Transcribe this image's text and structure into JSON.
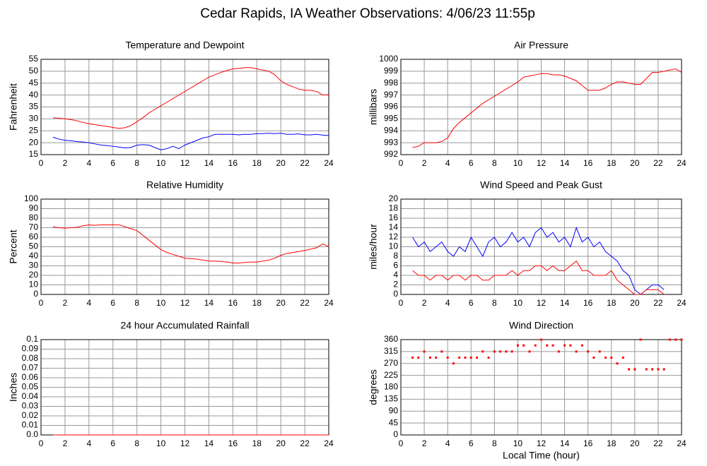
{
  "title": "Cedar Rapids, IA Weather Observations: 4/06/23 11:55p",
  "chart_data": [
    {
      "type": "line",
      "title": "Temperature and Dewpoint",
      "ylabel": "Fahrenheit",
      "x": [
        1,
        1.5,
        2,
        2.5,
        3,
        3.5,
        4,
        4.5,
        5,
        5.5,
        6,
        6.5,
        7,
        7.5,
        8,
        8.5,
        9,
        9.5,
        10,
        10.5,
        11,
        11.5,
        12,
        12.5,
        13,
        13.5,
        14,
        14.5,
        15,
        15.5,
        16,
        16.5,
        17,
        17.5,
        18,
        18.5,
        19,
        19.5,
        20,
        20.5,
        21,
        21.5,
        22,
        22.5,
        23,
        23.5,
        24
      ],
      "series": [
        {
          "color": "#ff0000",
          "values": [
            30.5,
            30.3,
            30,
            29.7,
            29.2,
            28.5,
            28,
            27.6,
            27.2,
            26.8,
            26.4,
            26,
            26.3,
            27.2,
            28.8,
            30.5,
            32.5,
            34,
            35.5,
            37,
            38.5,
            40,
            41.5,
            43,
            44.5,
            46,
            47.5,
            48.5,
            49.5,
            50.3,
            51,
            51.2,
            51.5,
            51.5,
            51,
            50.5,
            50,
            48.5,
            46,
            44.5,
            43.5,
            42.5,
            42,
            42,
            41.5,
            40,
            40.2
          ]
        },
        {
          "color": "#0000ff",
          "values": [
            22.3,
            21.5,
            21,
            20.8,
            20.5,
            20.3,
            20,
            19.5,
            19,
            18.8,
            18.5,
            18.2,
            17.8,
            18,
            19,
            19.2,
            19,
            18,
            17,
            17.5,
            18.5,
            17.5,
            19,
            20,
            21,
            22,
            22.5,
            23.5,
            23.5,
            23.5,
            23.5,
            23.3,
            23.5,
            23.5,
            23.8,
            23.8,
            24,
            23.8,
            24,
            23.5,
            23.5,
            23.7,
            23.3,
            23.3,
            23.5,
            23.2,
            23
          ]
        }
      ],
      "xlim": [
        0,
        24
      ],
      "xticks": [
        0,
        2,
        4,
        6,
        8,
        10,
        12,
        14,
        16,
        18,
        20,
        22,
        24
      ],
      "ylim": [
        15,
        55
      ],
      "yticks": [
        15,
        20,
        25,
        30,
        35,
        40,
        45,
        50,
        55
      ],
      "grid": true
    },
    {
      "type": "line",
      "title": "Air Pressure",
      "ylabel": "millibars",
      "x": [
        1,
        1.5,
        2,
        2.5,
        3,
        3.5,
        4,
        4.5,
        5,
        5.5,
        6,
        6.5,
        7,
        7.5,
        8,
        8.5,
        9,
        9.5,
        10,
        10.5,
        11,
        11.5,
        12,
        12.5,
        13,
        13.5,
        14,
        14.5,
        15,
        15.5,
        16,
        16.5,
        17,
        17.5,
        18,
        18.5,
        19,
        19.5,
        20,
        20.5,
        21,
        21.5,
        22,
        22.5,
        23,
        23.5,
        24
      ],
      "series": [
        {
          "color": "#ff0000",
          "values": [
            992.6,
            992.7,
            993,
            993,
            993,
            993.1,
            993.4,
            994.2,
            994.7,
            995.1,
            995.5,
            995.9,
            996.3,
            996.6,
            996.9,
            997.2,
            997.5,
            997.8,
            998.1,
            998.5,
            998.6,
            998.7,
            998.8,
            998.8,
            998.7,
            998.7,
            998.6,
            998.4,
            998.2,
            997.8,
            997.4,
            997.4,
            997.4,
            997.6,
            997.9,
            998.1,
            998.1,
            998,
            997.9,
            997.9,
            998.4,
            998.9,
            998.9,
            999,
            999.1,
            999.2,
            998.9
          ]
        }
      ],
      "xlim": [
        0,
        24
      ],
      "xticks": [
        0,
        2,
        4,
        6,
        8,
        10,
        12,
        14,
        16,
        18,
        20,
        22,
        24
      ],
      "ylim": [
        992,
        1000
      ],
      "yticks": [
        992,
        993,
        994,
        995,
        996,
        997,
        998,
        999,
        1000
      ],
      "grid": true
    },
    {
      "type": "line",
      "title": "Relative Humidity",
      "ylabel": "Percent",
      "x": [
        1,
        1.5,
        2,
        2.5,
        3,
        3.5,
        4,
        4.5,
        5,
        5.5,
        6,
        6.5,
        7,
        7.5,
        8,
        8.5,
        9,
        9.5,
        10,
        10.5,
        11,
        11.5,
        12,
        12.5,
        13,
        13.5,
        14,
        14.5,
        15,
        15.5,
        16,
        16.5,
        17,
        17.5,
        18,
        18.5,
        19,
        19.5,
        20,
        20.5,
        21,
        21.5,
        22,
        22.5,
        23,
        23.5,
        24
      ],
      "series": [
        {
          "color": "#ff0000",
          "values": [
            71,
            70,
            69.5,
            70,
            70.5,
            72,
            73,
            72.5,
            73,
            73,
            73,
            73,
            71,
            69,
            67,
            62,
            57,
            52,
            47,
            44,
            42,
            40,
            38,
            37.5,
            37,
            36,
            35,
            35,
            34.5,
            34,
            33,
            33,
            33.5,
            34,
            34,
            35,
            36,
            38,
            41,
            43,
            44,
            45,
            46,
            47.5,
            49,
            53,
            50
          ]
        }
      ],
      "xlim": [
        0,
        24
      ],
      "xticks": [
        0,
        2,
        4,
        6,
        8,
        10,
        12,
        14,
        16,
        18,
        20,
        22,
        24
      ],
      "ylim": [
        0,
        100
      ],
      "yticks": [
        0,
        10,
        20,
        30,
        40,
        50,
        60,
        70,
        80,
        90,
        100
      ],
      "grid": true
    },
    {
      "type": "line",
      "title": "Wind Speed and Peak Gust",
      "ylabel": "miles/hour",
      "x": [
        1,
        1.5,
        2,
        2.5,
        3,
        3.5,
        4,
        4.5,
        5,
        5.5,
        6,
        6.5,
        7,
        7.5,
        8,
        8.5,
        9,
        9.5,
        10,
        10.5,
        11,
        11.5,
        12,
        12.5,
        13,
        13.5,
        14,
        14.5,
        15,
        15.5,
        16,
        16.5,
        17,
        17.5,
        18,
        18.5,
        19,
        19.5,
        20,
        20.5,
        21,
        21.5,
        22,
        22.5,
        23,
        23.5,
        24
      ],
      "series": [
        {
          "color": "#0000ff",
          "values": [
            12,
            10,
            11,
            9,
            10,
            11,
            9,
            8,
            10,
            9,
            12,
            10,
            8,
            11,
            12,
            10,
            11,
            13,
            11,
            12,
            10,
            13,
            14,
            12,
            13,
            11,
            12,
            10,
            14,
            11,
            12,
            10,
            11,
            9,
            8,
            7,
            5,
            4,
            1,
            0,
            1,
            2,
            2,
            1,
            null,
            null,
            null
          ]
        },
        {
          "color": "#ff0000",
          "values": [
            5,
            4,
            4,
            3,
            4,
            4,
            3,
            4,
            4,
            3,
            4,
            4,
            3,
            3,
            4,
            4,
            4,
            5,
            4,
            5,
            5,
            6,
            6,
            5,
            6,
            5,
            5,
            6,
            7,
            5,
            5,
            4,
            4,
            4,
            5,
            3,
            2,
            1,
            0,
            0,
            1,
            1,
            1,
            0,
            null,
            null,
            null
          ]
        }
      ],
      "xlim": [
        0,
        24
      ],
      "xticks": [
        0,
        2,
        4,
        6,
        8,
        10,
        12,
        14,
        16,
        18,
        20,
        22,
        24
      ],
      "ylim": [
        0,
        20
      ],
      "yticks": [
        0,
        2,
        4,
        6,
        8,
        10,
        12,
        14,
        16,
        18,
        20
      ],
      "grid": true
    },
    {
      "type": "line",
      "title": "24 hour Accumulated Rainfall",
      "ylabel": "Inches",
      "x": [
        1,
        24
      ],
      "series": [
        {
          "color": "#ff0000",
          "values": [
            0,
            0
          ]
        }
      ],
      "xlim": [
        0,
        24
      ],
      "xticks": [
        0,
        2,
        4,
        6,
        8,
        10,
        12,
        14,
        16,
        18,
        20,
        22,
        24
      ],
      "ylim": [
        0,
        0.1
      ],
      "yticks": [
        {
          "value": 0,
          "label": "0.0"
        },
        0.01,
        0.02,
        0.03,
        0.04,
        0.05,
        0.06,
        0.07,
        0.08,
        0.09,
        0.1
      ],
      "grid": true
    },
    {
      "type": "scatter",
      "title": "Wind Direction",
      "ylabel": "degrees",
      "xlabel": "Local Time (hour)",
      "x": [
        1,
        1.5,
        2,
        2.5,
        3,
        3.5,
        4,
        4.5,
        5,
        5.5,
        6,
        6.5,
        7,
        7.5,
        8,
        8.5,
        9,
        9.5,
        10,
        10.5,
        11,
        11.5,
        12,
        12.5,
        13,
        13.5,
        14,
        14.5,
        15,
        15.5,
        16,
        16.5,
        17,
        17.5,
        18,
        18.5,
        19,
        19.5,
        20,
        20.5,
        21,
        21.5,
        22,
        22.5,
        23,
        23.5,
        24
      ],
      "series": [
        {
          "color": "#ff0000",
          "values": [
            292,
            292,
            315,
            292,
            292,
            315,
            292,
            270,
            292,
            292,
            292,
            292,
            315,
            292,
            315,
            315,
            315,
            315,
            338,
            338,
            315,
            338,
            360,
            338,
            338,
            315,
            338,
            338,
            315,
            338,
            315,
            292,
            315,
            292,
            292,
            270,
            292,
            248,
            248,
            360,
            248,
            248,
            248,
            248,
            360,
            360,
            360
          ]
        }
      ],
      "xlim": [
        0,
        24
      ],
      "xticks": [
        0,
        2,
        4,
        6,
        8,
        10,
        12,
        14,
        16,
        18,
        20,
        22,
        24
      ],
      "ylim": [
        0,
        360
      ],
      "yticks": [
        0,
        45,
        90,
        135,
        180,
        225,
        270,
        315,
        360
      ],
      "grid": true
    }
  ]
}
